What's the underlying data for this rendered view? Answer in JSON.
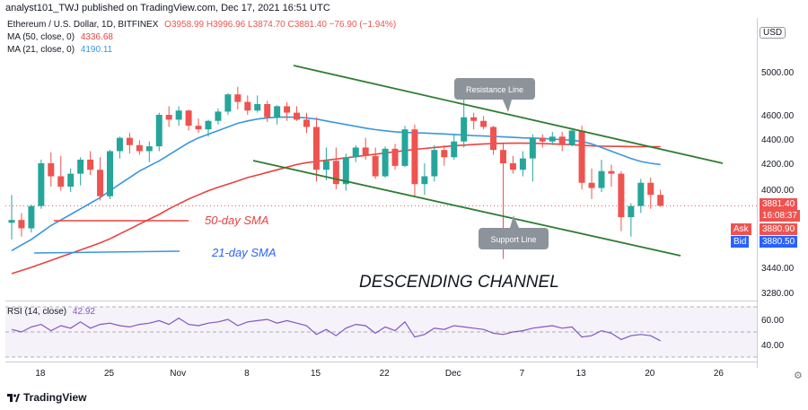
{
  "header": {
    "published_by": "analyst101_TWJ published on TradingView.com, Dec 17, 2021 16:51 UTC"
  },
  "legend": {
    "symbol": "Ethereum / U.S. Dollar, 1D, BITFINEX",
    "ohlc": "O3958.99  H3996.96  L3874.70  C3881.40  −76.90 (−1.94%)",
    "ma50_label": "MA (50, close, 0)",
    "ma50_value": "4336.68",
    "ma21_label": "MA (21, close, 0)",
    "ma21_value": "4190.11",
    "rsi_label": "RSI (14, close)",
    "rsi_value": "42.92"
  },
  "currency": "USD",
  "price_tags": {
    "last": "3881.40",
    "countdown": "16:08:37",
    "ask_label": "Ask",
    "ask": "3880.90",
    "bid_label": "Bid",
    "bid": "3880.50"
  },
  "footer": {
    "brand": "TradingView"
  },
  "colors": {
    "up": "#26a69a",
    "down": "#ef5350",
    "ma50": "#e8423f",
    "ma21": "#3a96dd",
    "channel": "#2e7d32",
    "rsi": "#7e57c2",
    "text_ann_red": "#e8423f",
    "text_ann_blue": "#2962ff"
  },
  "annotations": {
    "resistance": "Resistance Line",
    "support": "Support Line",
    "sma50": "50-day SMA",
    "sma21": "21-day SMA",
    "channel_title": "DESCENDING CHANNEL"
  },
  "chart_data": {
    "type": "candlestick",
    "price_axis_ticks": [
      "5000.00",
      "4600.00",
      "4400.00",
      "4200.00",
      "4000.00",
      "3440.00",
      "3280.00"
    ],
    "rsi_axis_ticks": [
      "60.00",
      "40.00"
    ],
    "x_tick_labels": [
      "18",
      "25",
      "Nov",
      "8",
      "15",
      "22",
      "Dec",
      "7",
      "13",
      "20",
      "26"
    ],
    "candles": [
      {
        "o": 3760,
        "h": 3960,
        "l": 3640,
        "c": 3780
      },
      {
        "o": 3780,
        "h": 3830,
        "l": 3660,
        "c": 3720
      },
      {
        "o": 3720,
        "h": 3890,
        "l": 3690,
        "c": 3880
      },
      {
        "o": 3880,
        "h": 4230,
        "l": 3860,
        "c": 4200
      },
      {
        "o": 4200,
        "h": 4290,
        "l": 4020,
        "c": 4100
      },
      {
        "o": 4100,
        "h": 4260,
        "l": 3990,
        "c": 4020
      },
      {
        "o": 4020,
        "h": 4160,
        "l": 3980,
        "c": 4120
      },
      {
        "o": 4120,
        "h": 4250,
        "l": 4030,
        "c": 4230
      },
      {
        "o": 4230,
        "h": 4300,
        "l": 4110,
        "c": 4150
      },
      {
        "o": 4150,
        "h": 4250,
        "l": 3920,
        "c": 3950
      },
      {
        "o": 3950,
        "h": 4310,
        "l": 3930,
        "c": 4300
      },
      {
        "o": 4300,
        "h": 4420,
        "l": 4240,
        "c": 4410
      },
      {
        "o": 4410,
        "h": 4450,
        "l": 4280,
        "c": 4350
      },
      {
        "o": 4350,
        "h": 4390,
        "l": 4270,
        "c": 4300
      },
      {
        "o": 4300,
        "h": 4380,
        "l": 4210,
        "c": 4340
      },
      {
        "o": 4340,
        "h": 4620,
        "l": 4300,
        "c": 4600
      },
      {
        "o": 4600,
        "h": 4680,
        "l": 4500,
        "c": 4560
      },
      {
        "o": 4560,
        "h": 4680,
        "l": 4510,
        "c": 4640
      },
      {
        "o": 4640,
        "h": 4650,
        "l": 4470,
        "c": 4510
      },
      {
        "o": 4510,
        "h": 4570,
        "l": 4450,
        "c": 4480
      },
      {
        "o": 4480,
        "h": 4560,
        "l": 4420,
        "c": 4550
      },
      {
        "o": 4550,
        "h": 4660,
        "l": 4520,
        "c": 4630
      },
      {
        "o": 4630,
        "h": 4800,
        "l": 4600,
        "c": 4790
      },
      {
        "o": 4790,
        "h": 4860,
        "l": 4650,
        "c": 4720
      },
      {
        "o": 4720,
        "h": 4780,
        "l": 4600,
        "c": 4640
      },
      {
        "o": 4640,
        "h": 4780,
        "l": 4620,
        "c": 4700
      },
      {
        "o": 4700,
        "h": 4730,
        "l": 4540,
        "c": 4580
      },
      {
        "o": 4580,
        "h": 4690,
        "l": 4520,
        "c": 4680
      },
      {
        "o": 4680,
        "h": 4720,
        "l": 4550,
        "c": 4620
      },
      {
        "o": 4620,
        "h": 4680,
        "l": 4550,
        "c": 4560
      },
      {
        "o": 4560,
        "h": 4620,
        "l": 4450,
        "c": 4500
      },
      {
        "o": 4500,
        "h": 4580,
        "l": 4060,
        "c": 4150
      },
      {
        "o": 4150,
        "h": 4330,
        "l": 4070,
        "c": 4220
      },
      {
        "o": 4220,
        "h": 4330,
        "l": 4000,
        "c": 4040
      },
      {
        "o": 4040,
        "h": 4280,
        "l": 3990,
        "c": 4250
      },
      {
        "o": 4250,
        "h": 4350,
        "l": 4210,
        "c": 4330
      },
      {
        "o": 4330,
        "h": 4410,
        "l": 4230,
        "c": 4260
      },
      {
        "o": 4260,
        "h": 4330,
        "l": 4080,
        "c": 4100
      },
      {
        "o": 4100,
        "h": 4340,
        "l": 4090,
        "c": 4320
      },
      {
        "o": 4320,
        "h": 4360,
        "l": 4150,
        "c": 4180
      },
      {
        "o": 4180,
        "h": 4510,
        "l": 4170,
        "c": 4480
      },
      {
        "o": 4480,
        "h": 4520,
        "l": 3950,
        "c": 4040
      },
      {
        "o": 4040,
        "h": 4200,
        "l": 3960,
        "c": 4100
      },
      {
        "o": 4100,
        "h": 4350,
        "l": 4060,
        "c": 4310
      },
      {
        "o": 4310,
        "h": 4350,
        "l": 4180,
        "c": 4250
      },
      {
        "o": 4250,
        "h": 4440,
        "l": 4230,
        "c": 4380
      },
      {
        "o": 4380,
        "h": 4780,
        "l": 4330,
        "c": 4580
      },
      {
        "o": 4580,
        "h": 4620,
        "l": 4480,
        "c": 4550
      },
      {
        "o": 4550,
        "h": 4590,
        "l": 4480,
        "c": 4500
      },
      {
        "o": 4500,
        "h": 4510,
        "l": 4270,
        "c": 4310
      },
      {
        "o": 4310,
        "h": 4360,
        "l": 3500,
        "c": 4200
      },
      {
        "o": 4200,
        "h": 4260,
        "l": 4120,
        "c": 4150
      },
      {
        "o": 4150,
        "h": 4300,
        "l": 4100,
        "c": 4240
      },
      {
        "o": 4240,
        "h": 4440,
        "l": 4060,
        "c": 4410
      },
      {
        "o": 4410,
        "h": 4440,
        "l": 4330,
        "c": 4380
      },
      {
        "o": 4380,
        "h": 4460,
        "l": 4350,
        "c": 4420
      },
      {
        "o": 4420,
        "h": 4460,
        "l": 4300,
        "c": 4350
      },
      {
        "o": 4350,
        "h": 4490,
        "l": 4340,
        "c": 4470
      },
      {
        "o": 4470,
        "h": 4510,
        "l": 4000,
        "c": 4050
      },
      {
        "o": 4050,
        "h": 4160,
        "l": 3930,
        "c": 4010
      },
      {
        "o": 4010,
        "h": 4230,
        "l": 3980,
        "c": 4140
      },
      {
        "o": 4140,
        "h": 4190,
        "l": 4020,
        "c": 4120
      },
      {
        "o": 4120,
        "h": 4140,
        "l": 3700,
        "c": 3800
      },
      {
        "o": 3800,
        "h": 3900,
        "l": 3660,
        "c": 3880
      },
      {
        "o": 3880,
        "h": 4080,
        "l": 3830,
        "c": 4050
      },
      {
        "o": 4050,
        "h": 4090,
        "l": 3860,
        "c": 3960
      },
      {
        "o": 3960,
        "h": 3996.96,
        "l": 3874.7,
        "c": 3881.4
      }
    ],
    "ma50": [
      3400,
      3420,
      3440,
      3465,
      3490,
      3515,
      3540,
      3565,
      3590,
      3615,
      3645,
      3680,
      3715,
      3750,
      3785,
      3820,
      3860,
      3895,
      3930,
      3960,
      3990,
      4015,
      4040,
      4065,
      4090,
      4110,
      4130,
      4150,
      4170,
      4190,
      4205,
      4215,
      4225,
      4235,
      4245,
      4255,
      4265,
      4275,
      4285,
      4295,
      4305,
      4315,
      4322,
      4330,
      4338,
      4345,
      4350,
      4355,
      4360,
      4362,
      4365,
      4366,
      4366,
      4365,
      4363,
      4360,
      4357,
      4353,
      4348,
      4344,
      4341,
      4340,
      4339,
      4338,
      4337,
      4337,
      4336.68
    ],
    "ma21": [
      3560,
      3600,
      3640,
      3690,
      3740,
      3780,
      3820,
      3860,
      3900,
      3940,
      3990,
      4040,
      4090,
      4140,
      4180,
      4220,
      4270,
      4320,
      4370,
      4410,
      4440,
      4470,
      4500,
      4530,
      4550,
      4565,
      4575,
      4580,
      4582,
      4580,
      4575,
      4565,
      4550,
      4535,
      4520,
      4505,
      4490,
      4478,
      4468,
      4460,
      4455,
      4452,
      4450,
      4446,
      4442,
      4438,
      4433,
      4428,
      4425,
      4422,
      4418,
      4414,
      4410,
      4408,
      4405,
      4400,
      4395,
      4390,
      4380,
      4360,
      4330,
      4300,
      4270,
      4240,
      4215,
      4200,
      4190.11
    ],
    "rsi": [
      52,
      50,
      54,
      56,
      51,
      55,
      53,
      58,
      53,
      56,
      57,
      55,
      54,
      56,
      57,
      59,
      56,
      61,
      56,
      55,
      57,
      58,
      60,
      55,
      58,
      59,
      60,
      57,
      59,
      57,
      55,
      48,
      52,
      47,
      53,
      56,
      55,
      49,
      54,
      51,
      58,
      46,
      48,
      53,
      52,
      55,
      54,
      53,
      52,
      49,
      48,
      50,
      51,
      53,
      54,
      55,
      53,
      54,
      46,
      47,
      51,
      49,
      44,
      47,
      48,
      47,
      42.92
    ]
  }
}
